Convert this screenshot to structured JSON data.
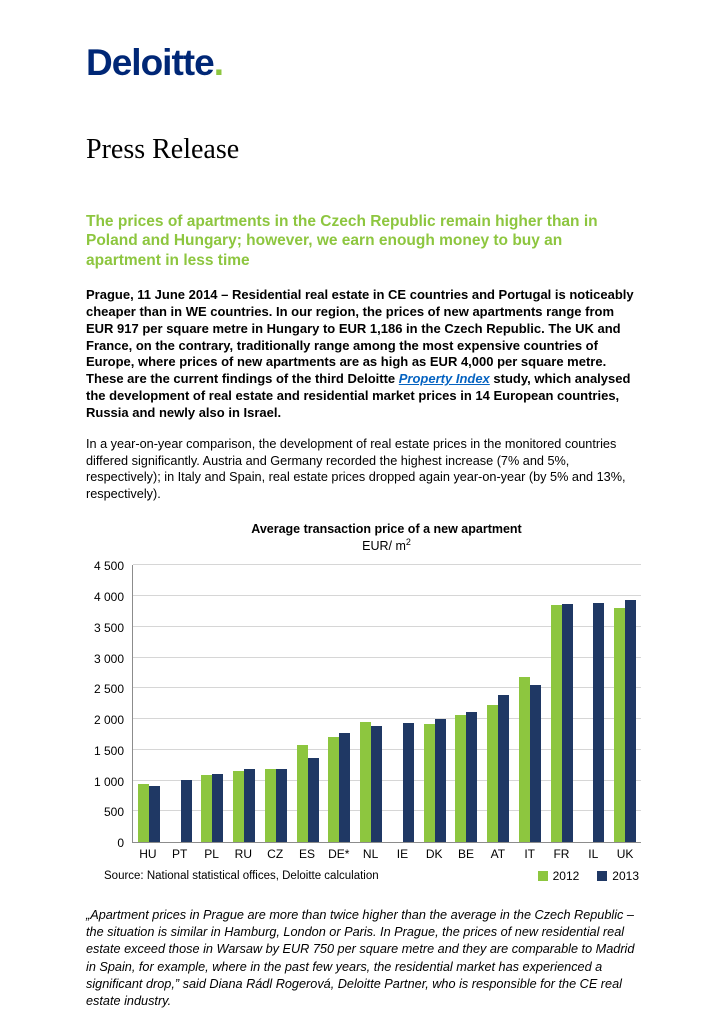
{
  "header": {
    "logo_text": "Deloitte",
    "logo_dot": ".",
    "page_title": "Press Release"
  },
  "article": {
    "headline": "The prices of apartments in the Czech Republic remain higher than in Poland and Hungary; however, we earn enough money to buy an apartment in less time",
    "lead_before_link": "Prague, 11 June 2014 – Residential real estate in CE countries and Portugal is noticeably cheaper than in WE countries. In our region, the prices of new apartments range from EUR 917 per square metre in Hungary to EUR 1,186 in the Czech Republic. The UK and France, on the contrary, traditionally range among the most expensive countries of Europe, where prices of new apartments are as high as EUR 4,000 per square metre. These are the current findings of the third Deloitte ",
    "lead_link": "Property Index",
    "lead_after_link": " study, which analysed the development of real estate and residential market prices in 14 European countries, Russia and newly also in Israel.",
    "paragraph": "In a year-on-year comparison, the development of real estate prices in the monitored countries differed significantly. Austria and Germany recorded the highest increase (7% and 5%, respectively); in Italy and Spain, real estate prices dropped again year-on-year (by 5% and 13%, respectively).",
    "quote": "„Apartment prices in Prague are more than twice higher than the average in the Czech Republic – the situation is similar in Hamburg, London or Paris. In Prague, the prices of new residential real estate exceed those in Warsaw by EUR 750 per square metre and they are comparable to Madrid in Spain, for example, where in the past few years, the residential market has experienced a significant drop,” said Diana Rádl Rogerová, Deloitte Partner, who is responsible for the CE real estate industry."
  },
  "chart_data": {
    "type": "bar",
    "title": "Average transaction price of a new apartment",
    "unit_label": "EUR/ m",
    "unit_superscript": "2",
    "categories": [
      "HU",
      "PT",
      "PL",
      "RU",
      "CZ",
      "ES",
      "DE*",
      "NL",
      "IE",
      "DK",
      "BE",
      "AT",
      "IT",
      "FR",
      "IL",
      "UK"
    ],
    "series": [
      {
        "name": "2012",
        "color": "#8dc63f",
        "values": [
          950,
          null,
          1095,
          1155,
          1190,
          1580,
          1705,
          1950,
          null,
          1920,
          2060,
          2230,
          2690,
          3860,
          null,
          3800
        ]
      },
      {
        "name": "2013",
        "color": "#1f3864",
        "values": [
          917,
          1005,
          1105,
          1185,
          1186,
          1365,
          1780,
          1880,
          1930,
          2000,
          2110,
          2390,
          2550,
          3870,
          3880,
          3930
        ]
      }
    ],
    "ylim": [
      0,
      4500
    ],
    "ytick_step": 500,
    "ytick_labels": [
      "0",
      "500",
      "1 000",
      "1 500",
      "2 000",
      "2 500",
      "3 000",
      "3 500",
      "4 000",
      "4 500"
    ],
    "grid": true,
    "legend_position": "bottom-right",
    "source": "Source: National statistical offices, Deloitte calculation"
  },
  "colors": {
    "logo_blue": "#002776",
    "accent_green": "#8dc63f",
    "link_blue": "#0563c1",
    "series_2013_blue": "#1f3864"
  }
}
